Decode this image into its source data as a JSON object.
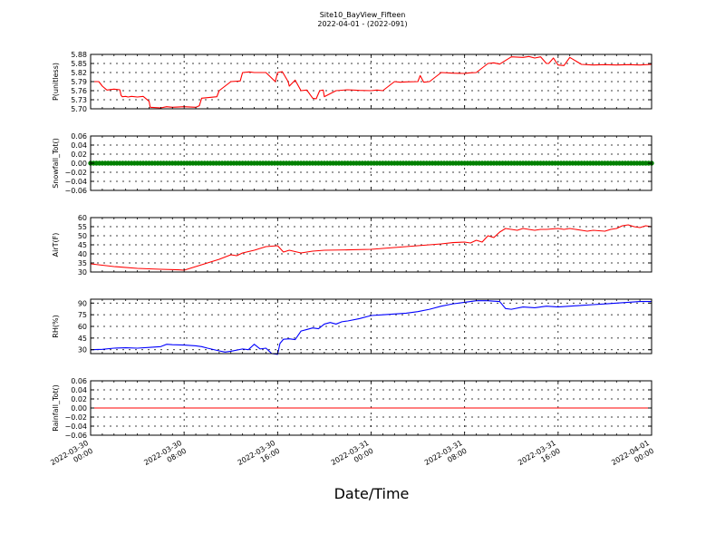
{
  "header": {
    "title": "Site10_BayView_Fifteen",
    "subtitle": "2022-04-01 - (2022-091)"
  },
  "chart_data": {
    "type": "line",
    "title": "Site10_BayView_Fifteen",
    "subtitle": "2022-04-01 - (2022-091)",
    "xlabel": "Date/Time",
    "x_ticks": [
      [
        "2022-03-30",
        "00:00"
      ],
      [
        "2022-03-30",
        "08:00"
      ],
      [
        "2022-03-30",
        "16:00"
      ],
      [
        "2022-03-31",
        "00:00"
      ],
      [
        "2022-03-31",
        "08:00"
      ],
      [
        "2022-03-31",
        "16:00"
      ],
      [
        "2022-04-01",
        "00:00"
      ]
    ],
    "xlim": [
      "2022-03-30 00:00",
      "2022-04-01 00:00"
    ],
    "grid": true,
    "panels": [
      {
        "ylabel": "P(unitless)",
        "ylim": [
          5.7,
          5.88
        ],
        "yticks": [
          "5.70",
          "5.73",
          "5.76",
          "5.79",
          "5.82",
          "5.85",
          "5.88"
        ],
        "color": "#ff0000",
        "series": [
          {
            "x": [
              0,
              0.7,
              1,
              1.3,
              1.4,
              2,
              2.5,
              2.6,
              2.7,
              3,
              3.2,
              3.5,
              4,
              4.5,
              5,
              5.1,
              6,
              6.5,
              7,
              8,
              9,
              9.3,
              9.5,
              10,
              10.8,
              11,
              12,
              12.8,
              13,
              13.6,
              14,
              15,
              15.8,
              16,
              16.4,
              16.9,
              17,
              17.5,
              18,
              18.5,
              19,
              19.3,
              19.6,
              19.9,
              20,
              21,
              22,
              23,
              24,
              24.5,
              25,
              26,
              26.5,
              27,
              28,
              28.2,
              28.5,
              29,
              30,
              31,
              32,
              32.2,
              32.5,
              33,
              34,
              34.5,
              35,
              36,
              37,
              37.5,
              38,
              38.5,
              39,
              39.2,
              39.6,
              40,
              40.5,
              41,
              42,
              43,
              44,
              45,
              46,
              47,
              48
            ],
            "y": [
              5.79,
              5.79,
              5.775,
              5.765,
              5.762,
              5.765,
              5.763,
              5.745,
              5.74,
              5.741,
              5.739,
              5.741,
              5.739,
              5.741,
              5.725,
              5.705,
              5.703,
              5.707,
              5.705,
              5.707,
              5.705,
              5.71,
              5.735,
              5.737,
              5.74,
              5.76,
              5.79,
              5.792,
              5.82,
              5.822,
              5.82,
              5.82,
              5.79,
              5.82,
              5.823,
              5.79,
              5.775,
              5.795,
              5.76,
              5.762,
              5.735,
              5.733,
              5.76,
              5.762,
              5.74,
              5.76,
              5.763,
              5.761,
              5.76,
              5.762,
              5.76,
              5.79,
              5.788,
              5.789,
              5.79,
              5.81,
              5.788,
              5.79,
              5.82,
              5.818,
              5.817,
              5.818,
              5.819,
              5.82,
              5.85,
              5.852,
              5.848,
              5.872,
              5.87,
              5.873,
              5.868,
              5.872,
              5.85,
              5.85,
              5.868,
              5.845,
              5.843,
              5.87,
              5.847,
              5.845,
              5.846,
              5.845,
              5.846,
              5.845,
              5.847
            ]
          }
        ]
      },
      {
        "ylabel": "Snowfall_Tot()",
        "ylim": [
          -0.06,
          0.06
        ],
        "yticks": [
          "−0.06",
          "−0.04",
          "−0.02",
          "0.00",
          "0.02",
          "0.04",
          "0.06"
        ],
        "color": "#008000",
        "markers": true,
        "series": [
          {
            "x": [
              0,
              48
            ],
            "y": [
              0,
              0
            ],
            "interval_hours": 0.25
          }
        ]
      },
      {
        "ylabel": "AirT(F)",
        "ylim": [
          30,
          60
        ],
        "yticks": [
          "30",
          "35",
          "40",
          "45",
          "50",
          "55",
          "60"
        ],
        "color": "#ff0000",
        "series": [
          {
            "x": [
              0,
              2,
              4,
              6,
              7.5,
              8,
              9,
              10,
              11,
              12,
              12.5,
              13,
              14,
              15,
              16,
              16.5,
              17,
              18,
              19,
              20,
              22,
              24,
              25,
              26,
              27,
              28,
              29,
              30,
              31,
              32,
              32.5,
              33,
              33.5,
              34,
              34.5,
              35,
              35.5,
              36,
              36.5,
              37,
              37.5,
              38,
              38.5,
              39,
              40,
              40.5,
              41,
              42,
              42.5,
              43,
              44,
              44.5,
              45,
              45.5,
              46,
              46.5,
              47,
              47.5,
              48
            ],
            "y": [
              34.5,
              33,
              32,
              31.5,
              31.2,
              31,
              33,
              35,
              37,
              39.5,
              39,
              40.5,
              42,
              44,
              44.5,
              41,
              42,
              40.5,
              41.5,
              42,
              42.2,
              42.5,
              43,
              43.5,
              44,
              44.5,
              45,
              45.5,
              46.2,
              46.5,
              46,
              47.5,
              46.5,
              50,
              49,
              52,
              54,
              53.5,
              53,
              54,
              53.5,
              53,
              53.5,
              53.5,
              54,
              53.5,
              54,
              53,
              52.5,
              53,
              52.5,
              53.5,
              54,
              55.5,
              56,
              55,
              54.5,
              55.5,
              55
            ]
          }
        ]
      },
      {
        "ylabel": "RH(%)",
        "ylim": [
          25,
          95
        ],
        "yticks": [
          "30",
          "45",
          "60",
          "75",
          "90"
        ],
        "color": "#0000ff",
        "series": [
          {
            "x": [
              0,
              1,
              2,
              3,
              4,
              5,
              6,
              6.5,
              7,
              8,
              9,
              9.5,
              10,
              11,
              11.5,
              12,
              13,
              13.5,
              14,
              14.5,
              15,
              15.5,
              16,
              16.2,
              16.5,
              17,
              17.5,
              18,
              18.5,
              19,
              19.5,
              20,
              20.5,
              21,
              21.5,
              22,
              23,
              24,
              25,
              26,
              27,
              28,
              29,
              30,
              31,
              32,
              32.5,
              33,
              34,
              34.5,
              35,
              35.5,
              36,
              37,
              38,
              39,
              40,
              41,
              42,
              43,
              44,
              45,
              46,
              47,
              48
            ],
            "y": [
              30,
              30.5,
              32,
              32.5,
              32,
              33,
              34,
              37,
              36.5,
              36,
              35,
              34,
              32,
              28.5,
              27,
              28,
              31,
              30,
              37,
              31,
              32,
              25,
              24,
              38,
              43.5,
              44,
              43,
              54,
              56,
              58,
              57,
              63,
              65,
              63,
              66,
              67,
              70,
              74,
              75,
              76,
              77,
              79,
              82,
              86,
              89,
              91,
              92,
              93,
              93,
              92.5,
              92,
              83,
              82,
              85,
              84,
              86,
              85,
              86,
              87,
              88,
              89,
              90,
              91,
              92,
              92
            ]
          }
        ]
      },
      {
        "ylabel": "Rainfall_Tot()",
        "ylim": [
          -0.06,
          0.06
        ],
        "yticks": [
          "−0.06",
          "−0.04",
          "−0.02",
          "0.00",
          "0.02",
          "0.04",
          "0.06"
        ],
        "color": "#ff0000",
        "series": [
          {
            "x": [
              0,
              48
            ],
            "y": [
              0,
              0
            ]
          }
        ]
      }
    ]
  }
}
